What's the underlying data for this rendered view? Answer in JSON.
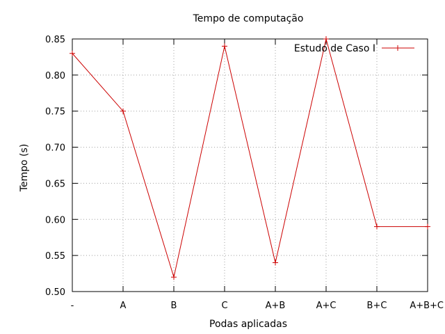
{
  "chart_data": {
    "type": "line",
    "title": "Tempo de computação",
    "xlabel": "Podas aplicadas",
    "ylabel": "Tempo (s)",
    "categories": [
      "-",
      "A",
      "B",
      "C",
      "A+B",
      "A+C",
      "B+C",
      "A+B+C"
    ],
    "ylim": [
      0.5,
      0.85
    ],
    "yticks": [
      "0.50",
      "0.55",
      "0.60",
      "0.65",
      "0.70",
      "0.75",
      "0.80",
      "0.85"
    ],
    "grid": true,
    "legend_position": "top-right",
    "series": [
      {
        "name": "Estudo de Caso I",
        "color": "#cc0000",
        "values": [
          0.83,
          0.75,
          0.52,
          0.84,
          0.54,
          0.85,
          0.59,
          0.59
        ]
      }
    ]
  }
}
